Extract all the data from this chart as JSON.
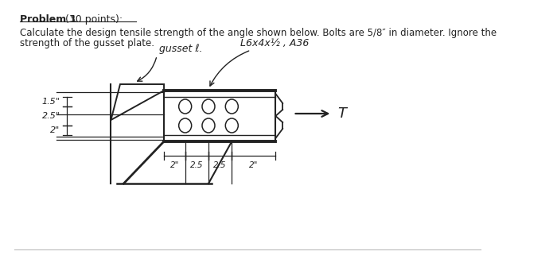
{
  "title_bold": "Problem 1",
  "title_normal": " (30 points):",
  "body_line1": "Calculate the design tensile strength of the angle shown below. Bolts are 5/8″ in diameter. Ignore the",
  "body_line2": "strength of the gusset plate.",
  "gusset_label": "gusset ℓ.",
  "angle_label": "L6x4x½ , A36",
  "T_label": "T",
  "dim_left": [
    "1.5\"",
    "2.5\"",
    "2\""
  ],
  "dim_bottom": [
    "2\"",
    "2.5",
    "2.5",
    "2\""
  ],
  "bg_color": "#ffffff",
  "text_color": "#222222",
  "sketch_color": "#222222",
  "bolt_color": "#ffffff",
  "bolt_edge": "#222222",
  "bottom_line_color": "#bbbbbb"
}
